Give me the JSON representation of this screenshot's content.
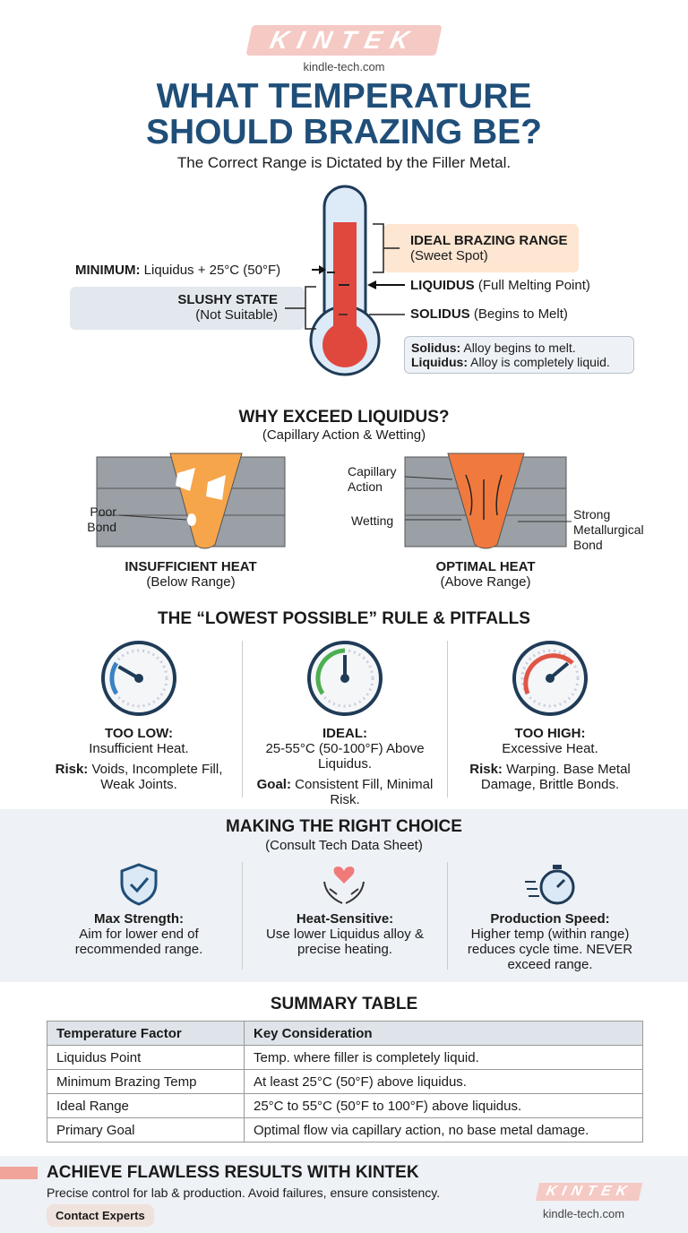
{
  "brand": {
    "logo": "KINTEK",
    "site": "kindle-tech.com"
  },
  "header": {
    "title_line1": "WHAT TEMPERATURE",
    "title_line2": "SHOULD BRAZING BE?",
    "subtitle": "The Correct Range is Dictated by the Filler Metal."
  },
  "thermometer": {
    "ideal_title": "IDEAL BRAZING RANGE",
    "ideal_sub": "(Sweet Spot)",
    "minimum_label": "MINIMUM:",
    "minimum_text": "Liquidus + 25°C (50°F)",
    "liquidus_label": "LIQUIDUS",
    "liquidus_text": "(Full Melting Point)",
    "solidus_label": "SOLIDUS",
    "solidus_text": "(Begins to Melt)",
    "slushy_title": "SLUSHY STATE",
    "slushy_sub": "(Not Suitable)",
    "note_solidus_label": "Solidus:",
    "note_solidus": "Alloy begins to melt.",
    "note_liquidus_label": "Liquidus:",
    "note_liquidus": "Alloy is completely liquid."
  },
  "why": {
    "title": "WHY EXCEED LIQUIDUS?",
    "subtitle": "(Capillary Action & Wetting)",
    "left": {
      "poor_bond": "Poor\nBond",
      "title": "INSUFFICIENT HEAT",
      "sub": "(Below Range)"
    },
    "right": {
      "capillary": "Capillary\nAction",
      "wetting": "Wetting",
      "strong": "Strong\nMetallurgical\nBond",
      "title": "OPTIMAL HEAT",
      "sub": "(Above Range)"
    }
  },
  "rule": {
    "title": "THE “LOWEST POSSIBLE” RULE & PITFALLS",
    "items": [
      {
        "title": "TOO LOW:",
        "desc": "Insufficient Heat.",
        "risk_label": "Risk:",
        "risk": "Voids, Incomplete Fill, Weak Joints.",
        "gauge_color": "#3b82c4",
        "level": "low"
      },
      {
        "title": "IDEAL:",
        "desc": "25-55°C (50-100°F) Above Liquidus.",
        "risk_label": "Goal:",
        "risk": "Consistent Fill, Minimal Risk.",
        "gauge_color": "#4caf50",
        "level": "middle"
      },
      {
        "title": "TOO HIGH:",
        "desc": "Excessive Heat.",
        "risk_label": "Risk:",
        "risk": "Warping. Base Metal Damage, Brittle Bonds.",
        "gauge_color": "#e05545",
        "level": "high"
      }
    ]
  },
  "choice": {
    "title": "MAKING THE RIGHT CHOICE",
    "subtitle": "(Consult Tech Data Sheet)",
    "items": [
      {
        "icon": "shield-check-icon",
        "title": "Max Strength:",
        "desc": "Aim for lower end of recommended range."
      },
      {
        "icon": "heart-hands-icon",
        "title": "Heat-Sensitive:",
        "desc": "Use lower Liquidus alloy & precise heating."
      },
      {
        "icon": "stopwatch-icon",
        "title": "Production Speed:",
        "desc": "Higher temp (within range) reduces cycle time. NEVER exceed range."
      }
    ]
  },
  "summary": {
    "title": "SUMMARY TABLE",
    "headers": [
      "Temperature Factor",
      "Key Consideration"
    ],
    "rows": [
      [
        "Liquidus Point",
        "Temp. where filler is completely liquid."
      ],
      [
        "Minimum Brazing Temp",
        "At least 25°C (50°F) above liquidus."
      ],
      [
        "Ideal Range",
        "25°C to 55°C (50°F to 100°F) above liquidus."
      ],
      [
        "Primary Goal",
        "Optimal flow via capillary action, no base metal damage."
      ]
    ]
  },
  "footer": {
    "title": "ACHIEVE FLAWLESS RESULTS WITH KINTEK",
    "text": "Precise control for lab & production. Avoid failures, ensure consistency.",
    "button": "Contact Experts",
    "logo": "KINTEK",
    "site": "kindle-tech.com"
  },
  "colors": {
    "navy": "#1f4e79",
    "accent": "#f0a49a",
    "mercury": "#e0483e",
    "ideal_bg": "#fde6d2",
    "slushy_bg": "#e3e8ee"
  }
}
